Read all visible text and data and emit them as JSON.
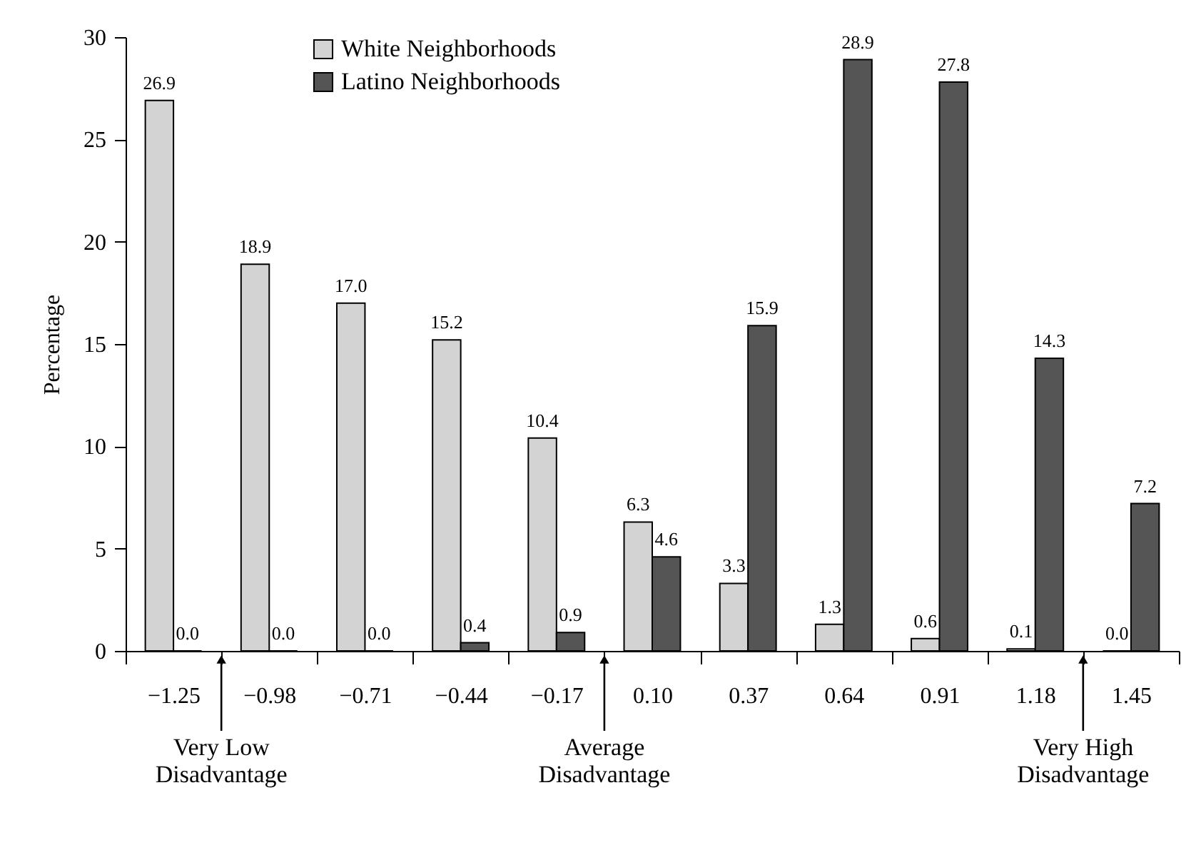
{
  "chart_data": {
    "type": "bar",
    "ylabel": "Percentage",
    "categories": [
      "−1.25",
      "−0.98",
      "−0.71",
      "−0.44",
      "−0.17",
      "0.10",
      "0.37",
      "0.64",
      "0.91",
      "1.18",
      "1.45"
    ],
    "ylim": [
      0,
      30
    ],
    "yticks": [
      0,
      5,
      10,
      15,
      20,
      25,
      30
    ],
    "grid": false,
    "legend": "top left",
    "series": [
      {
        "name": "White Neighborhoods",
        "color": "#d3d3d3",
        "values": [
          26.9,
          18.9,
          17.0,
          15.2,
          10.4,
          6.3,
          3.3,
          1.3,
          0.6,
          0.1,
          0.0
        ],
        "value_labels": [
          "26.9",
          "18.9",
          "17.0",
          "15.2",
          "10.4",
          "6.3",
          "3.3",
          "1.3",
          "0.6",
          "0.1",
          "0.0"
        ]
      },
      {
        "name": "Latino Neighborhoods",
        "color": "#555555",
        "values": [
          0.0,
          0.0,
          0.0,
          0.4,
          0.9,
          4.6,
          15.9,
          28.9,
          27.8,
          14.3,
          7.2
        ],
        "value_labels": [
          "0.0",
          "0.0",
          "0.0",
          "0.4",
          "0.9",
          "4.6",
          "15.9",
          "28.9",
          "27.8",
          "14.3",
          "7.2"
        ]
      }
    ],
    "annotations": [
      "Very Low Disadvantage",
      "Average Disadvantage",
      "Very High Disadvantage"
    ]
  }
}
